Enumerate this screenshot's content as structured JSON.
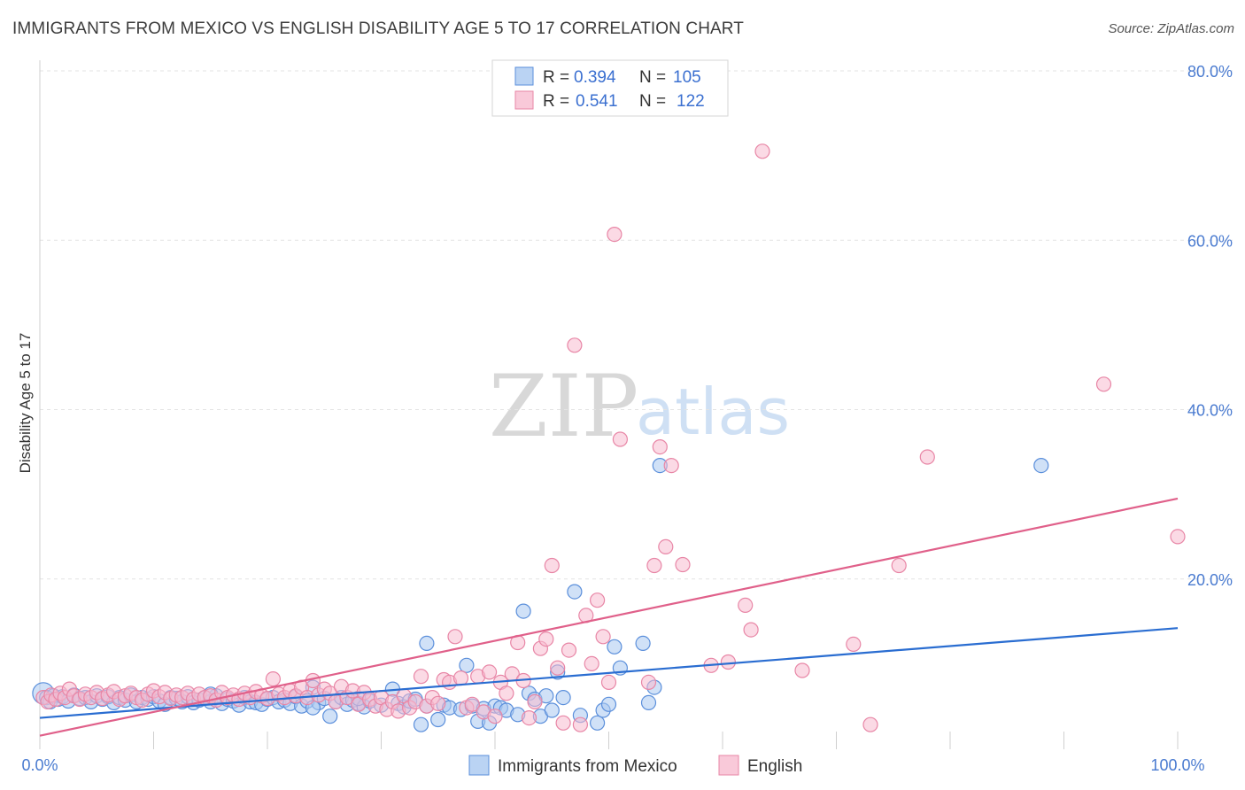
{
  "header": {
    "title": "IMMIGRANTS FROM MEXICO VS ENGLISH DISABILITY AGE 5 TO 17 CORRELATION CHART",
    "source": "Source: ZipAtlas.com"
  },
  "watermark": {
    "zip": "ZIP",
    "atlas": "atlas"
  },
  "colors": {
    "blue_fill": "#a9c8f0",
    "blue_stroke": "#5b8fdb",
    "blue_line": "#2a6dd1",
    "pink_fill": "#f7bcd0",
    "pink_stroke": "#e886a6",
    "pink_line": "#e0608a",
    "grid": "#e3e3e3",
    "tick_text": "#4a7bd0"
  },
  "legend": {
    "rows": [
      {
        "r_label": "R =",
        "r_value": "0.394",
        "n_label": "N =",
        "n_value": "105"
      },
      {
        "r_label": "R =",
        "r_value": "0.541",
        "n_label": "N =",
        "n_value": "122"
      }
    ]
  },
  "chart_data": {
    "type": "scatter",
    "title": "IMMIGRANTS FROM MEXICO VS ENGLISH DISABILITY AGE 5 TO 17 CORRELATION CHART",
    "xlabel": "",
    "ylabel": "Disability Age 5 to 17",
    "xlim": [
      0,
      100
    ],
    "ylim": [
      0,
      80
    ],
    "x_tick_labels": [
      "0.0%",
      "100.0%"
    ],
    "y_ticks": [
      20,
      40,
      60,
      80
    ],
    "y_tick_labels": [
      "20.0%",
      "40.0%",
      "60.0%",
      "80.0%"
    ],
    "grid": true,
    "legend_position": "top-center",
    "series": [
      {
        "name": "Immigrants from Mexico",
        "R": 0.394,
        "N": 105,
        "trend": [
          [
            0,
            3.6
          ],
          [
            100,
            14.2
          ]
        ],
        "points": [
          [
            0.3,
            6.5
          ],
          [
            0.6,
            6.0
          ],
          [
            0.9,
            5.5
          ],
          [
            1.2,
            6.2
          ],
          [
            1.6,
            5.8
          ],
          [
            2.0,
            6.1
          ],
          [
            2.5,
            5.6
          ],
          [
            3.0,
            6.3
          ],
          [
            3.5,
            5.9
          ],
          [
            4.0,
            6.0
          ],
          [
            4.5,
            5.5
          ],
          [
            5.0,
            6.2
          ],
          [
            5.5,
            5.8
          ],
          [
            6.0,
            6.1
          ],
          [
            6.5,
            5.4
          ],
          [
            7.0,
            6.0
          ],
          [
            7.5,
            5.7
          ],
          [
            8.0,
            6.3
          ],
          [
            8.5,
            5.5
          ],
          [
            9.0,
            6.0
          ],
          [
            9.5,
            5.8
          ],
          [
            10.0,
            6.1
          ],
          [
            10.5,
            5.6
          ],
          [
            11.0,
            5.2
          ],
          [
            11.5,
            6.0
          ],
          [
            12.0,
            5.9
          ],
          [
            12.5,
            5.5
          ],
          [
            13.0,
            6.1
          ],
          [
            13.5,
            5.4
          ],
          [
            14.0,
            5.7
          ],
          [
            14.5,
            6.0
          ],
          [
            15.0,
            5.5
          ],
          [
            15.5,
            6.2
          ],
          [
            16.0,
            5.3
          ],
          [
            16.5,
            5.8
          ],
          [
            17.0,
            5.6
          ],
          [
            17.5,
            5.1
          ],
          [
            18.0,
            6.0
          ],
          [
            18.5,
            5.5
          ],
          [
            19.0,
            5.4
          ],
          [
            19.5,
            5.2
          ],
          [
            20.0,
            5.8
          ],
          [
            20.5,
            6.0
          ],
          [
            21.0,
            5.5
          ],
          [
            21.5,
            5.7
          ],
          [
            22.0,
            5.3
          ],
          [
            22.5,
            6.1
          ],
          [
            23.0,
            5.0
          ],
          [
            23.5,
            5.6
          ],
          [
            24.0,
            7.2
          ],
          [
            24.5,
            5.4
          ],
          [
            25.0,
            5.9
          ],
          [
            25.5,
            3.8
          ],
          [
            26.0,
            5.5
          ],
          [
            26.5,
            6.0
          ],
          [
            27.0,
            5.2
          ],
          [
            27.5,
            5.7
          ],
          [
            28.0,
            5.3
          ],
          [
            28.5,
            4.9
          ],
          [
            29.0,
            5.6
          ],
          [
            30.0,
            5.1
          ],
          [
            31.0,
            7.0
          ],
          [
            31.5,
            5.3
          ],
          [
            32.0,
            4.9
          ],
          [
            32.5,
            5.6
          ],
          [
            33.0,
            5.8
          ],
          [
            33.5,
            2.8
          ],
          [
            34.0,
            5.0
          ],
          [
            35.0,
            3.4
          ],
          [
            35.5,
            5.1
          ],
          [
            36.0,
            4.8
          ],
          [
            37.0,
            4.6
          ],
          [
            37.5,
            9.8
          ],
          [
            38.0,
            5.0
          ],
          [
            38.5,
            3.2
          ],
          [
            39.0,
            4.7
          ],
          [
            39.5,
            3.0
          ],
          [
            40.0,
            5.0
          ],
          [
            40.5,
            4.8
          ],
          [
            41.0,
            4.5
          ],
          [
            42.0,
            4.0
          ],
          [
            42.5,
            16.2
          ],
          [
            43.0,
            6.5
          ],
          [
            43.5,
            5.8
          ],
          [
            44.0,
            3.8
          ],
          [
            44.5,
            6.2
          ],
          [
            45.0,
            4.5
          ],
          [
            45.5,
            9.0
          ],
          [
            46.0,
            6.0
          ],
          [
            47.0,
            18.5
          ],
          [
            47.5,
            3.9
          ],
          [
            49.0,
            3.0
          ],
          [
            49.5,
            4.5
          ],
          [
            50.0,
            5.2
          ],
          [
            50.5,
            12.0
          ],
          [
            51.0,
            9.5
          ],
          [
            53.0,
            12.4
          ],
          [
            53.5,
            5.4
          ],
          [
            54.0,
            7.2
          ],
          [
            54.5,
            33.4
          ],
          [
            88.0,
            33.4
          ],
          [
            34.0,
            12.4
          ],
          [
            28.0,
            5.9
          ],
          [
            24.0,
            4.8
          ],
          [
            15.0,
            6.4
          ]
        ]
      },
      {
        "name": "English",
        "R": 0.541,
        "N": 122,
        "trend": [
          [
            0,
            1.5
          ],
          [
            100,
            29.5
          ]
        ],
        "points": [
          [
            0.3,
            6.0
          ],
          [
            0.7,
            5.5
          ],
          [
            1.0,
            6.3
          ],
          [
            1.4,
            5.8
          ],
          [
            1.8,
            6.5
          ],
          [
            2.2,
            6.0
          ],
          [
            2.6,
            7.0
          ],
          [
            3.0,
            6.2
          ],
          [
            3.5,
            5.8
          ],
          [
            4.0,
            6.4
          ],
          [
            4.5,
            6.0
          ],
          [
            5.0,
            6.6
          ],
          [
            5.5,
            5.9
          ],
          [
            6.0,
            6.3
          ],
          [
            6.5,
            6.7
          ],
          [
            7.0,
            5.8
          ],
          [
            7.5,
            6.2
          ],
          [
            8.0,
            6.5
          ],
          [
            8.5,
            6.0
          ],
          [
            9.0,
            5.7
          ],
          [
            9.5,
            6.4
          ],
          [
            10.0,
            6.8
          ],
          [
            10.5,
            6.1
          ],
          [
            11.0,
            6.6
          ],
          [
            11.5,
            5.9
          ],
          [
            12.0,
            6.3
          ],
          [
            12.5,
            6.0
          ],
          [
            13.0,
            6.5
          ],
          [
            13.5,
            5.8
          ],
          [
            14.0,
            6.4
          ],
          [
            14.5,
            6.0
          ],
          [
            15.0,
            6.2
          ],
          [
            15.5,
            5.7
          ],
          [
            16.0,
            6.6
          ],
          [
            16.5,
            6.0
          ],
          [
            17.0,
            6.3
          ],
          [
            17.5,
            5.8
          ],
          [
            18.0,
            6.5
          ],
          [
            18.5,
            6.0
          ],
          [
            19.0,
            6.7
          ],
          [
            19.5,
            6.2
          ],
          [
            20.0,
            5.9
          ],
          [
            20.5,
            8.2
          ],
          [
            21.0,
            6.4
          ],
          [
            21.5,
            6.0
          ],
          [
            22.0,
            6.8
          ],
          [
            22.5,
            6.2
          ],
          [
            23.0,
            7.2
          ],
          [
            23.5,
            6.0
          ],
          [
            24.0,
            8.0
          ],
          [
            24.5,
            6.3
          ],
          [
            25.0,
            7.0
          ],
          [
            25.5,
            6.5
          ],
          [
            26.0,
            5.5
          ],
          [
            26.5,
            7.3
          ],
          [
            27.0,
            6.0
          ],
          [
            27.5,
            6.8
          ],
          [
            28.0,
            5.2
          ],
          [
            28.5,
            6.6
          ],
          [
            29.0,
            5.8
          ],
          [
            29.5,
            5.0
          ],
          [
            30.0,
            6.0
          ],
          [
            30.5,
            4.6
          ],
          [
            31.0,
            5.5
          ],
          [
            31.5,
            4.4
          ],
          [
            32.0,
            6.2
          ],
          [
            32.5,
            4.8
          ],
          [
            33.0,
            5.5
          ],
          [
            33.5,
            8.5
          ],
          [
            34.0,
            5.0
          ],
          [
            34.5,
            6.0
          ],
          [
            35.0,
            5.3
          ],
          [
            35.5,
            8.1
          ],
          [
            36.0,
            7.8
          ],
          [
            36.5,
            13.2
          ],
          [
            37.0,
            8.3
          ],
          [
            37.5,
            4.8
          ],
          [
            38.0,
            5.2
          ],
          [
            38.5,
            8.5
          ],
          [
            39.0,
            4.3
          ],
          [
            39.5,
            9.0
          ],
          [
            40.0,
            3.8
          ],
          [
            40.5,
            7.8
          ],
          [
            41.0,
            6.5
          ],
          [
            41.5,
            8.8
          ],
          [
            42.0,
            12.5
          ],
          [
            42.5,
            8.0
          ],
          [
            43.0,
            3.6
          ],
          [
            43.5,
            5.5
          ],
          [
            44.0,
            11.8
          ],
          [
            44.5,
            12.9
          ],
          [
            45.0,
            21.6
          ],
          [
            45.5,
            9.5
          ],
          [
            46.0,
            3.0
          ],
          [
            46.5,
            11.6
          ],
          [
            47.0,
            47.6
          ],
          [
            47.5,
            2.8
          ],
          [
            48.0,
            15.7
          ],
          [
            48.5,
            10.0
          ],
          [
            49.0,
            17.5
          ],
          [
            49.5,
            13.2
          ],
          [
            50.0,
            7.8
          ],
          [
            50.5,
            60.7
          ],
          [
            51.0,
            36.5
          ],
          [
            53.5,
            7.8
          ],
          [
            54.0,
            21.6
          ],
          [
            54.5,
            35.6
          ],
          [
            55.0,
            23.8
          ],
          [
            55.5,
            33.4
          ],
          [
            56.5,
            21.7
          ],
          [
            59.0,
            9.8
          ],
          [
            60.5,
            10.2
          ],
          [
            62.0,
            16.9
          ],
          [
            62.5,
            14.0
          ],
          [
            63.5,
            70.5
          ],
          [
            67.0,
            9.2
          ],
          [
            71.5,
            12.3
          ],
          [
            73.0,
            2.8
          ],
          [
            75.5,
            21.6
          ],
          [
            78.0,
            34.4
          ],
          [
            93.5,
            43.0
          ],
          [
            100.0,
            25.0
          ]
        ]
      }
    ]
  },
  "bottom_legend": {
    "items": [
      {
        "label": "Immigrants from Mexico"
      },
      {
        "label": "English"
      }
    ]
  }
}
